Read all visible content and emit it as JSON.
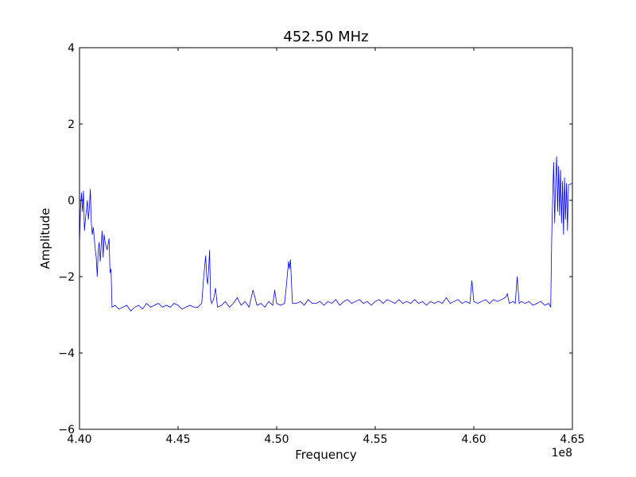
{
  "chart_data": {
    "type": "line",
    "title": "452.50 MHz",
    "x_label": "Frequency",
    "y_label": "Amplitude",
    "x_offset": "1e8",
    "color": "#0000ff",
    "grid": false,
    "xlim": [
      4.4,
      4.65
    ],
    "xticks": [
      {
        "value": 4.4,
        "label": "4.40"
      },
      {
        "value": 4.45,
        "label": "4.45"
      },
      {
        "value": 4.5,
        "label": "4.50"
      },
      {
        "value": 4.55,
        "label": "4.55"
      },
      {
        "value": 4.6,
        "label": "4.60"
      },
      {
        "value": 4.65,
        "label": "4.65"
      }
    ],
    "ylim": [
      -6,
      4
    ],
    "yticks": [
      {
        "value": -6,
        "label": "−6"
      },
      {
        "value": -4,
        "label": "−4"
      },
      {
        "value": -2,
        "label": "−2"
      },
      0,
      2,
      4
    ],
    "x": [
      4.4,
      4.4005,
      4.401,
      4.4015,
      4.402,
      4.4025,
      4.403,
      4.404,
      4.4045,
      4.405,
      4.4055,
      4.406,
      4.4065,
      4.407,
      4.408,
      4.4085,
      4.409,
      4.4095,
      4.41,
      4.4105,
      4.411,
      4.4115,
      4.412,
      4.4125,
      4.413,
      4.414,
      4.415,
      4.4155,
      4.416,
      4.4165,
      4.418,
      4.42,
      4.422,
      4.424,
      4.426,
      4.428,
      4.43,
      4.432,
      4.434,
      4.436,
      4.438,
      4.44,
      4.442,
      4.444,
      4.446,
      4.448,
      4.45,
      4.452,
      4.454,
      4.456,
      4.458,
      4.46,
      4.462,
      4.463,
      4.464,
      4.4645,
      4.465,
      4.4655,
      4.466,
      4.4665,
      4.467,
      4.468,
      4.469,
      4.47,
      4.472,
      4.474,
      4.476,
      4.478,
      4.48,
      4.482,
      4.484,
      4.486,
      4.488,
      4.49,
      4.492,
      4.494,
      4.496,
      4.498,
      4.499,
      4.5,
      4.502,
      4.504,
      4.505,
      4.506,
      4.5065,
      4.507,
      4.508,
      4.51,
      4.512,
      4.514,
      4.516,
      4.518,
      4.52,
      4.522,
      4.524,
      4.526,
      4.528,
      4.53,
      4.532,
      4.534,
      4.536,
      4.538,
      4.54,
      4.542,
      4.544,
      4.546,
      4.548,
      4.55,
      4.552,
      4.554,
      4.556,
      4.558,
      4.56,
      4.562,
      4.564,
      4.566,
      4.568,
      4.57,
      4.572,
      4.574,
      4.576,
      4.578,
      4.58,
      4.582,
      4.584,
      4.586,
      4.588,
      4.59,
      4.592,
      4.594,
      4.596,
      4.598,
      4.599,
      4.6,
      4.602,
      4.604,
      4.606,
      4.608,
      4.61,
      4.612,
      4.614,
      4.616,
      4.617,
      4.618,
      4.62,
      4.621,
      4.622,
      4.623,
      4.624,
      4.626,
      4.628,
      4.63,
      4.632,
      4.634,
      4.636,
      4.638,
      4.639,
      4.6395,
      4.64,
      4.6405,
      4.641,
      4.6415,
      4.642,
      4.6425,
      4.643,
      4.6435,
      4.644,
      4.6445,
      4.645,
      4.6455,
      4.646,
      4.6465,
      4.647,
      4.6475,
      4.648,
      4.65
    ],
    "values": [
      -1.2,
      -0.2,
      0.2,
      -0.3,
      0.25,
      -0.8,
      -0.5,
      0.0,
      -0.5,
      -0.2,
      0.3,
      -0.6,
      -0.9,
      -0.7,
      -1.3,
      -1.5,
      -2.0,
      -1.3,
      -1.1,
      -1.6,
      -1.2,
      -0.8,
      -1.5,
      -0.9,
      -1.1,
      -1.3,
      -1.0,
      -1.9,
      -1.8,
      -2.8,
      -2.75,
      -2.85,
      -2.8,
      -2.75,
      -2.9,
      -2.8,
      -2.75,
      -2.85,
      -2.7,
      -2.8,
      -2.75,
      -2.7,
      -2.8,
      -2.75,
      -2.8,
      -2.7,
      -2.75,
      -2.85,
      -2.8,
      -2.75,
      -2.8,
      -2.8,
      -2.7,
      -2.0,
      -1.45,
      -2.0,
      -2.2,
      -1.8,
      -1.3,
      -2.6,
      -2.7,
      -2.6,
      -2.3,
      -2.8,
      -2.75,
      -2.65,
      -2.8,
      -2.7,
      -2.55,
      -2.75,
      -2.65,
      -2.8,
      -2.35,
      -2.75,
      -2.7,
      -2.8,
      -2.65,
      -2.75,
      -2.35,
      -2.7,
      -2.75,
      -2.7,
      -2.2,
      -1.6,
      -1.8,
      -1.55,
      -2.7,
      -2.7,
      -2.65,
      -2.75,
      -2.6,
      -2.7,
      -2.7,
      -2.65,
      -2.75,
      -2.65,
      -2.7,
      -2.6,
      -2.75,
      -2.65,
      -2.6,
      -2.7,
      -2.65,
      -2.6,
      -2.7,
      -2.65,
      -2.75,
      -2.65,
      -2.6,
      -2.7,
      -2.6,
      -2.65,
      -2.7,
      -2.6,
      -2.7,
      -2.65,
      -2.7,
      -2.6,
      -2.7,
      -2.65,
      -2.75,
      -2.65,
      -2.7,
      -2.65,
      -2.7,
      -2.55,
      -2.7,
      -2.65,
      -2.6,
      -2.7,
      -2.65,
      -2.7,
      -2.1,
      -2.65,
      -2.7,
      -2.65,
      -2.6,
      -2.7,
      -2.6,
      -2.65,
      -2.6,
      -2.55,
      -2.45,
      -2.7,
      -2.65,
      -2.7,
      -2.0,
      -2.7,
      -2.65,
      -2.7,
      -2.65,
      -2.75,
      -2.7,
      -2.65,
      -2.75,
      -2.7,
      -2.8,
      -1.0,
      0.1,
      1.0,
      -0.6,
      0.5,
      1.15,
      -0.3,
      0.9,
      -0.4,
      0.8,
      -0.6,
      0.5,
      -0.9,
      0.6,
      -0.5,
      0.45,
      -0.8,
      0.4,
      0.45
    ]
  }
}
